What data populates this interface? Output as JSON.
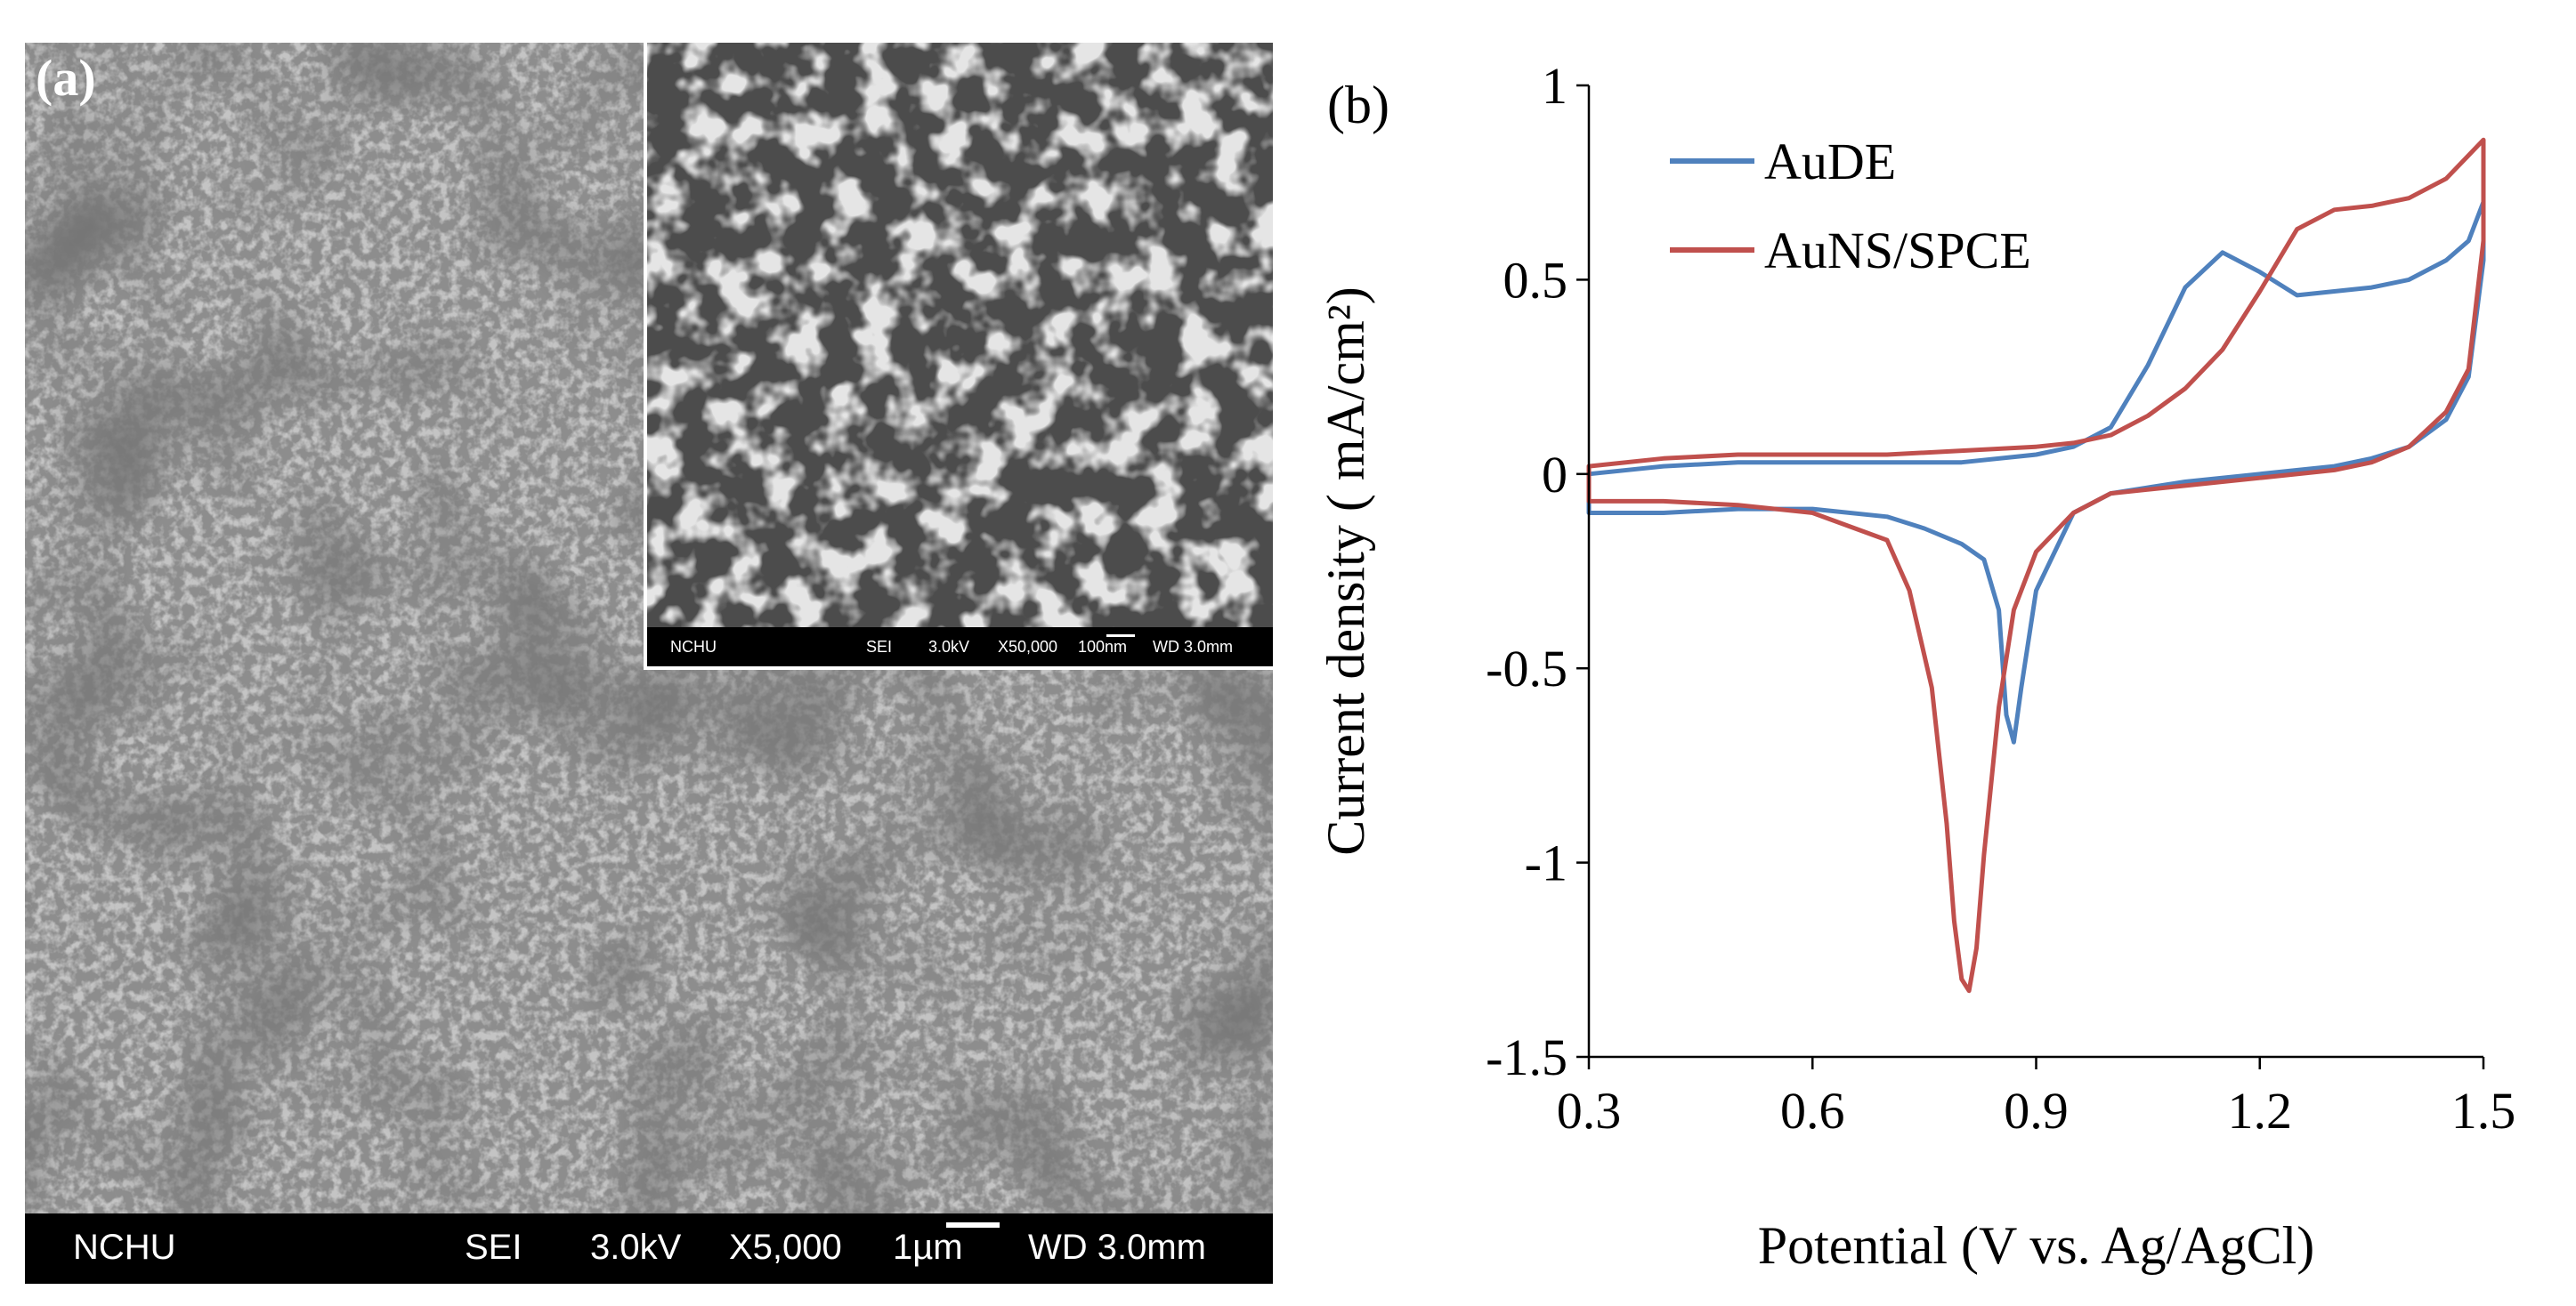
{
  "panel_a": {
    "label": "(a)",
    "info_bar": {
      "lab": "NCHU",
      "mode": "SEI",
      "voltage": "3.0kV",
      "magnification": "X5,000",
      "scale": "1µm",
      "wd": "WD 3.0mm"
    },
    "inset": {
      "info_bar": {
        "lab": "NCHU",
        "mode": "SEI",
        "voltage": "3.0kV",
        "magnification": "X50,000",
        "scale": "100nm",
        "wd": "WD 3.0mm"
      }
    },
    "colors": {
      "background": "#4a4a4a",
      "bar": "#000000"
    }
  },
  "chart_data": {
    "type": "line",
    "label": "(b)",
    "xlabel": "Potential (V vs. Ag/AgCl)",
    "ylabel": "Current density ( mA/cm²)",
    "xlim": [
      0.3,
      1.5
    ],
    "ylim": [
      -1.5,
      1
    ],
    "xticks": [
      0.3,
      0.6,
      0.9,
      1.2,
      1.5
    ],
    "xtick_labels": [
      "0.3",
      "0.6",
      "0.9",
      "1.2",
      "1.5"
    ],
    "yticks": [
      1,
      0.5,
      0,
      -0.5,
      -1,
      -1.5
    ],
    "ytick_labels": [
      "1",
      "0.5",
      "0",
      "-0.5",
      "-1",
      "-1.5"
    ],
    "grid": false,
    "legend_position": "top-left",
    "series": [
      {
        "name": "AuDE",
        "color": "#4f81bd",
        "x": [
          0.3,
          0.4,
          0.5,
          0.6,
          0.7,
          0.8,
          0.9,
          0.95,
          1.0,
          1.05,
          1.1,
          1.15,
          1.2,
          1.25,
          1.3,
          1.35,
          1.4,
          1.45,
          1.48,
          1.5,
          1.5,
          1.48,
          1.45,
          1.4,
          1.35,
          1.3,
          1.2,
          1.1,
          1.0,
          0.95,
          0.9,
          0.88,
          0.87,
          0.86,
          0.85,
          0.83,
          0.8,
          0.75,
          0.7,
          0.6,
          0.5,
          0.4,
          0.3
        ],
        "y": [
          0.0,
          0.02,
          0.03,
          0.03,
          0.03,
          0.03,
          0.05,
          0.07,
          0.12,
          0.28,
          0.48,
          0.57,
          0.52,
          0.46,
          0.47,
          0.48,
          0.5,
          0.55,
          0.6,
          0.7,
          0.55,
          0.25,
          0.14,
          0.07,
          0.04,
          0.02,
          0.0,
          -0.02,
          -0.05,
          -0.1,
          -0.3,
          -0.55,
          -0.69,
          -0.62,
          -0.35,
          -0.22,
          -0.18,
          -0.14,
          -0.11,
          -0.09,
          -0.09,
          -0.1,
          -0.1
        ]
      },
      {
        "name": "AuNS/SPCE",
        "color": "#c0504d",
        "x": [
          0.3,
          0.4,
          0.5,
          0.6,
          0.7,
          0.8,
          0.9,
          0.95,
          1.0,
          1.05,
          1.1,
          1.15,
          1.2,
          1.25,
          1.3,
          1.35,
          1.4,
          1.45,
          1.48,
          1.5,
          1.5,
          1.48,
          1.45,
          1.4,
          1.35,
          1.3,
          1.2,
          1.1,
          1.0,
          0.95,
          0.9,
          0.87,
          0.85,
          0.83,
          0.82,
          0.81,
          0.8,
          0.79,
          0.78,
          0.76,
          0.73,
          0.7,
          0.6,
          0.5,
          0.4,
          0.3
        ],
        "y": [
          0.02,
          0.04,
          0.05,
          0.05,
          0.05,
          0.06,
          0.07,
          0.08,
          0.1,
          0.15,
          0.22,
          0.32,
          0.47,
          0.63,
          0.68,
          0.69,
          0.71,
          0.76,
          0.82,
          0.86,
          0.6,
          0.27,
          0.16,
          0.07,
          0.03,
          0.01,
          -0.01,
          -0.03,
          -0.05,
          -0.1,
          -0.2,
          -0.35,
          -0.6,
          -0.98,
          -1.22,
          -1.33,
          -1.3,
          -1.15,
          -0.9,
          -0.55,
          -0.3,
          -0.17,
          -0.1,
          -0.08,
          -0.07,
          -0.07
        ]
      }
    ]
  }
}
